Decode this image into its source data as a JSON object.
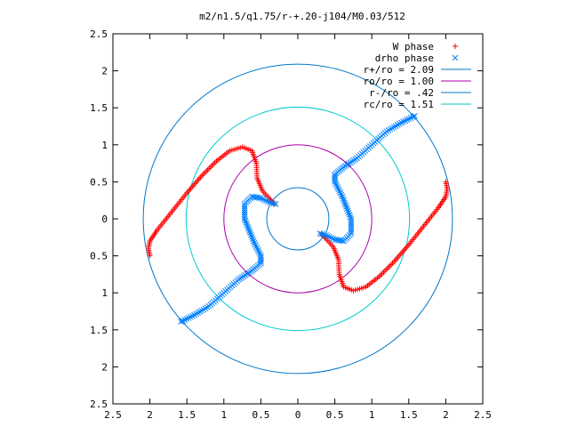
{
  "chart_data": {
    "type": "scatter",
    "title": "m2/n1.5/q1.75/r-+.20-j104/M0.03/512",
    "xlim": [
      -2.5,
      2.5
    ],
    "ylim": [
      -2.5,
      2.5
    ],
    "xticks": [
      -2.5,
      -2,
      -1.5,
      -1,
      -0.5,
      0,
      0.5,
      1,
      1.5,
      2,
      2.5
    ],
    "yticks": [
      2.5,
      2,
      1.5,
      1,
      0.5,
      0,
      -0.5,
      -1,
      -1.5,
      -2,
      -2.5
    ],
    "xtick_labels": [
      "2.5",
      "2",
      "1.5",
      "1",
      "0.5",
      "0",
      "0.5",
      "1",
      "1.5",
      "2",
      "2.5"
    ],
    "ytick_labels": [
      "2.5",
      "2",
      "1.5",
      "1",
      "0.5",
      "0",
      "0.5",
      "1",
      "1.5",
      "2",
      "2.5"
    ],
    "grid": false,
    "legend_position": "top-right",
    "legend": [
      {
        "label": "W phase",
        "color": "#ff0000",
        "marker": "plus"
      },
      {
        "label": "drho phase",
        "color": "#0080ff",
        "marker": "cross"
      },
      {
        "label": "r+/ro = 2.09",
        "color": "#0077cc",
        "marker": "line"
      },
      {
        "label": "ro/ro = 1.00",
        "color": "#aa00aa",
        "marker": "line"
      },
      {
        "label": "r-/ro = .42",
        "color": "#0077cc",
        "marker": "line"
      },
      {
        "label": "rc/ro = 1.51",
        "color": "#00cccc",
        "marker": "line"
      }
    ],
    "circles": [
      {
        "name": "r+/ro",
        "r": 2.09,
        "color": "#0077cc"
      },
      {
        "name": "ro/ro",
        "r": 1.0,
        "color": "#aa00aa"
      },
      {
        "name": "r-/ro",
        "r": 0.42,
        "color": "#0077cc"
      },
      {
        "name": "rc/ro",
        "r": 1.51,
        "color": "#00cccc"
      }
    ],
    "series": [
      {
        "name": "W phase",
        "color": "#ff0000",
        "marker": "plus",
        "arms": [
          [
            [
              -2.0,
              -0.5
            ],
            [
              -2.02,
              -0.4
            ],
            [
              -2.0,
              -0.3
            ],
            [
              -1.9,
              -0.15
            ],
            [
              -1.7,
              0.1
            ],
            [
              -1.5,
              0.35
            ],
            [
              -1.3,
              0.58
            ],
            [
              -1.1,
              0.78
            ],
            [
              -0.92,
              0.92
            ],
            [
              -0.75,
              0.97
            ],
            [
              -0.62,
              0.92
            ],
            [
              -0.56,
              0.75
            ],
            [
              -0.55,
              0.55
            ],
            [
              -0.48,
              0.38
            ],
            [
              -0.38,
              0.27
            ],
            [
              -0.32,
              0.2
            ]
          ],
          [
            [
              2.0,
              0.5
            ],
            [
              2.02,
              0.4
            ],
            [
              2.0,
              0.3
            ],
            [
              1.9,
              0.15
            ],
            [
              1.7,
              -0.1
            ],
            [
              1.5,
              -0.35
            ],
            [
              1.3,
              -0.58
            ],
            [
              1.1,
              -0.78
            ],
            [
              0.92,
              -0.92
            ],
            [
              0.75,
              -0.97
            ],
            [
              0.62,
              -0.92
            ],
            [
              0.56,
              -0.75
            ],
            [
              0.55,
              -0.55
            ],
            [
              0.48,
              -0.38
            ],
            [
              0.38,
              -0.27
            ],
            [
              0.32,
              -0.2
            ]
          ]
        ]
      },
      {
        "name": "drho phase",
        "color": "#0080ff",
        "marker": "cross",
        "arms": [
          [
            [
              1.58,
              1.39
            ],
            [
              1.4,
              1.3
            ],
            [
              1.2,
              1.18
            ],
            [
              1.0,
              1.0
            ],
            [
              0.8,
              0.82
            ],
            [
              0.62,
              0.7
            ],
            [
              0.5,
              0.6
            ],
            [
              0.5,
              0.5
            ],
            [
              0.6,
              0.3
            ],
            [
              0.72,
              0.0
            ],
            [
              0.72,
              -0.2
            ],
            [
              0.62,
              -0.3
            ],
            [
              0.5,
              -0.28
            ],
            [
              0.38,
              -0.22
            ],
            [
              0.3,
              -0.2
            ]
          ],
          [
            [
              -1.58,
              -1.39
            ],
            [
              -1.4,
              -1.3
            ],
            [
              -1.2,
              -1.18
            ],
            [
              -1.0,
              -1.0
            ],
            [
              -0.8,
              -0.82
            ],
            [
              -0.62,
              -0.7
            ],
            [
              -0.5,
              -0.6
            ],
            [
              -0.5,
              -0.5
            ],
            [
              -0.6,
              -0.3
            ],
            [
              -0.72,
              0.0
            ],
            [
              -0.72,
              0.2
            ],
            [
              -0.62,
              0.3
            ],
            [
              -0.5,
              0.28
            ],
            [
              -0.38,
              0.22
            ],
            [
              -0.3,
              0.2
            ]
          ]
        ]
      }
    ]
  }
}
